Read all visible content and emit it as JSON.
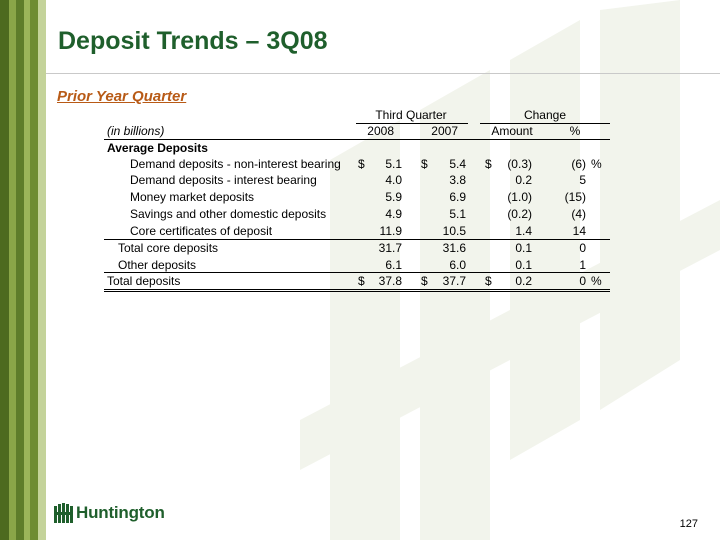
{
  "colors": {
    "title": "#1f5f2c",
    "subtitle": "#b85a16",
    "stripe_dark": "#4d6a1f",
    "stripe_mid": "#6e8c33",
    "stripe_light": "#8aa648",
    "watermark": "#f2f4ec"
  },
  "title": "Deposit Trends – 3Q08",
  "subtitle": "Prior Year Quarter",
  "table": {
    "group_headers": {
      "third_quarter": "Third Quarter",
      "change": "Change"
    },
    "units_label": "(in billions)",
    "col_headers": {
      "y2008": "2008",
      "y2007": "2007",
      "amount": "Amount",
      "pct": "%"
    },
    "section_label": "Average Deposits",
    "rows": [
      {
        "label": "Demand deposits - non-interest bearing",
        "d1": "$",
        "v2008": "5.1",
        "d2": "$",
        "v2007": "5.4",
        "d3": "$",
        "amount": "(0.3)",
        "pct": "(6)",
        "pct_sign": "%"
      },
      {
        "label": "Demand deposits - interest bearing",
        "v2008": "4.0",
        "v2007": "3.8",
        "amount": "0.2",
        "pct": "5"
      },
      {
        "label": "Money market deposits",
        "v2008": "5.9",
        "v2007": "6.9",
        "amount": "(1.0)",
        "pct": "(15)"
      },
      {
        "label": "Savings and other domestic deposits",
        "v2008": "4.9",
        "v2007": "5.1",
        "amount": "(0.2)",
        "pct": "(4)"
      },
      {
        "label": "Core certificates of deposit",
        "v2008": "11.9",
        "v2007": "10.5",
        "amount": "1.4",
        "pct": "14"
      },
      {
        "label": "Total core deposits",
        "v2008": "31.7",
        "v2007": "31.6",
        "amount": "0.1",
        "pct": "0"
      },
      {
        "label": "Other deposits",
        "v2008": "6.1",
        "v2007": "6.0",
        "amount": "0.1",
        "pct": "1"
      },
      {
        "label": "Total deposits",
        "d1": "$",
        "v2008": "37.8",
        "d2": "$",
        "v2007": "37.7",
        "d3": "$",
        "amount": "0.2",
        "pct": "0",
        "pct_sign": "%"
      }
    ]
  },
  "logo_text": "Huntington",
  "page_number": "127"
}
